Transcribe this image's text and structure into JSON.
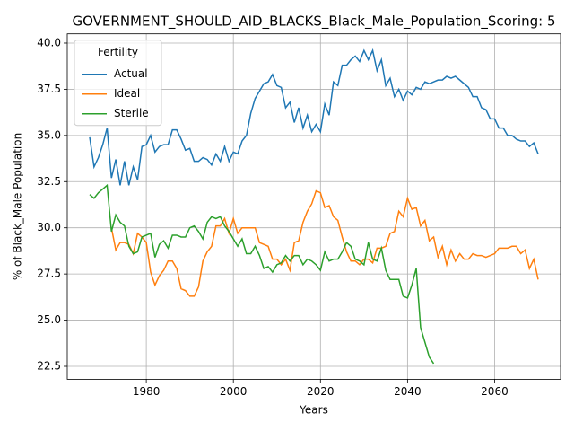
{
  "chart_data": {
    "type": "line",
    "title": "GOVERNMENT_SHOULD_AID_BLACKS_Black_Male_Population_Scoring: 5",
    "x_label": "Years",
    "y_label": "% of Black_Male Population",
    "x": [
      1967,
      1968,
      1969,
      1970,
      1971,
      1972,
      1973,
      1974,
      1975,
      1976,
      1977,
      1978,
      1979,
      1980,
      1981,
      1982,
      1983,
      1984,
      1985,
      1986,
      1987,
      1988,
      1989,
      1990,
      1991,
      1992,
      1993,
      1994,
      1995,
      1996,
      1997,
      1998,
      1999,
      2000,
      2001,
      2002,
      2003,
      2004,
      2005,
      2006,
      2007,
      2008,
      2009,
      2010,
      2011,
      2012,
      2013,
      2014,
      2015,
      2016,
      2017,
      2018,
      2019,
      2020,
      2021,
      2022,
      2023,
      2024,
      2025,
      2026,
      2027,
      2028,
      2029,
      2030,
      2031,
      2032,
      2033,
      2034,
      2035,
      2036,
      2037,
      2038,
      2039,
      2040,
      2041,
      2042,
      2043,
      2044,
      2045,
      2046,
      2047,
      2048,
      2049,
      2050,
      2051,
      2052,
      2053,
      2054,
      2055,
      2056,
      2057,
      2058,
      2059,
      2060,
      2061,
      2062,
      2063,
      2064,
      2065,
      2066,
      2067,
      2068,
      2069,
      2070
    ],
    "series": [
      {
        "name": "Actual",
        "color": "#1f77b4",
        "values": [
          34.9,
          33.3,
          33.8,
          34.5,
          35.4,
          32.7,
          33.7,
          32.3,
          33.6,
          32.3,
          33.3,
          32.6,
          34.4,
          34.5,
          35.0,
          34.1,
          34.4,
          34.5,
          34.5,
          35.3,
          35.3,
          34.8,
          34.2,
          34.3,
          33.6,
          33.6,
          33.8,
          33.7,
          33.4,
          34.0,
          33.6,
          34.4,
          33.6,
          34.1,
          34.0,
          34.7,
          35.0,
          36.2,
          37.0,
          37.4,
          37.8,
          37.9,
          38.3,
          37.7,
          37.6,
          36.5,
          36.8,
          35.7,
          36.5,
          35.4,
          36.1,
          35.2,
          35.6,
          35.2,
          36.7,
          36.1,
          37.9,
          37.7,
          38.8,
          38.8,
          39.1,
          39.3,
          39.0,
          39.6,
          39.1,
          39.6,
          38.5,
          39.1,
          37.7,
          38.1,
          37.1,
          37.5,
          36.9,
          37.4,
          37.2,
          37.6,
          37.5,
          37.9,
          37.8,
          37.9,
          38.0,
          38.0,
          38.2,
          38.1,
          38.2,
          38.0,
          37.8,
          37.6,
          37.1,
          37.1,
          36.5,
          36.4,
          35.9,
          35.9,
          35.4,
          35.4,
          35.0,
          35.0,
          34.8,
          34.7,
          34.7,
          34.4,
          34.6,
          34.0
        ]
      },
      {
        "name": "Ideal",
        "color": "#ff7f0e",
        "values": [
          null,
          null,
          null,
          null,
          null,
          30.0,
          28.8,
          29.2,
          29.2,
          29.1,
          28.6,
          29.7,
          29.5,
          29.2,
          27.6,
          26.9,
          27.4,
          27.7,
          28.2,
          28.2,
          27.8,
          26.7,
          26.6,
          26.3,
          26.3,
          26.8,
          28.2,
          28.7,
          29.0,
          30.1,
          30.1,
          30.5,
          29.7,
          30.5,
          29.7,
          30.0,
          30.0,
          30.0,
          30.0,
          29.2,
          29.1,
          29.0,
          28.3,
          28.3,
          28.0,
          28.3,
          27.7,
          29.2,
          29.3,
          30.3,
          30.9,
          31.3,
          32.0,
          31.9,
          31.1,
          31.2,
          30.6,
          30.4,
          29.5,
          28.7,
          28.2,
          28.2,
          28.0,
          28.3,
          28.3,
          28.1,
          28.9,
          28.9,
          29.0,
          29.7,
          29.8,
          30.9,
          30.6,
          31.6,
          31.0,
          31.1,
          30.1,
          30.4,
          29.3,
          29.5,
          28.4,
          29.0,
          28.0,
          28.8,
          28.2,
          28.6,
          28.3,
          28.3,
          28.6,
          28.5,
          28.5,
          28.4,
          28.5,
          28.6,
          28.9,
          28.9,
          28.9,
          29.0,
          29.0,
          28.6,
          28.8,
          27.8,
          28.3,
          27.2
        ]
      },
      {
        "name": "Sterile",
        "color": "#2ca02c",
        "values": [
          31.8,
          31.6,
          31.9,
          32.1,
          32.3,
          29.8,
          30.7,
          30.3,
          30.1,
          29.0,
          28.6,
          28.7,
          29.5,
          29.6,
          29.7,
          28.4,
          29.1,
          29.3,
          28.9,
          29.6,
          29.6,
          29.5,
          29.5,
          30.0,
          30.1,
          29.8,
          29.4,
          30.3,
          30.6,
          30.5,
          30.6,
          30.1,
          29.8,
          29.4,
          29.0,
          29.4,
          28.6,
          28.6,
          29.0,
          28.5,
          27.8,
          27.9,
          27.6,
          28.0,
          28.1,
          28.5,
          28.2,
          28.5,
          28.5,
          28.0,
          28.3,
          28.2,
          28.0,
          27.7,
          28.7,
          28.2,
          28.3,
          28.3,
          28.7,
          29.2,
          29.0,
          28.3,
          28.2,
          28.0,
          29.2,
          28.3,
          28.2,
          28.9,
          27.7,
          27.2,
          27.2,
          27.2,
          26.3,
          26.2,
          26.9,
          27.8,
          24.6,
          23.8,
          23.0,
          22.65,
          null,
          null,
          null,
          null,
          null,
          null,
          null,
          null,
          null,
          null,
          null,
          null,
          null,
          null,
          null,
          null,
          null,
          null,
          null,
          null,
          null,
          null,
          null,
          null
        ]
      }
    ],
    "legend_title": "Fertility",
    "legend": "upper left",
    "grid": true,
    "xlim": [
      1961.85,
      2075.15
    ],
    "xticks": [
      1980,
      2000,
      2020,
      2040,
      2060
    ],
    "ylim": [
      21.8,
      40.5
    ],
    "yticks": [
      22.5,
      {
        "value": 25,
        "label": "25.0"
      },
      27.5,
      {
        "value": 30,
        "label": "30.0"
      },
      32.5,
      {
        "value": 35,
        "label": "35.0"
      },
      37.5,
      {
        "value": 40,
        "label": "40.0"
      }
    ]
  }
}
